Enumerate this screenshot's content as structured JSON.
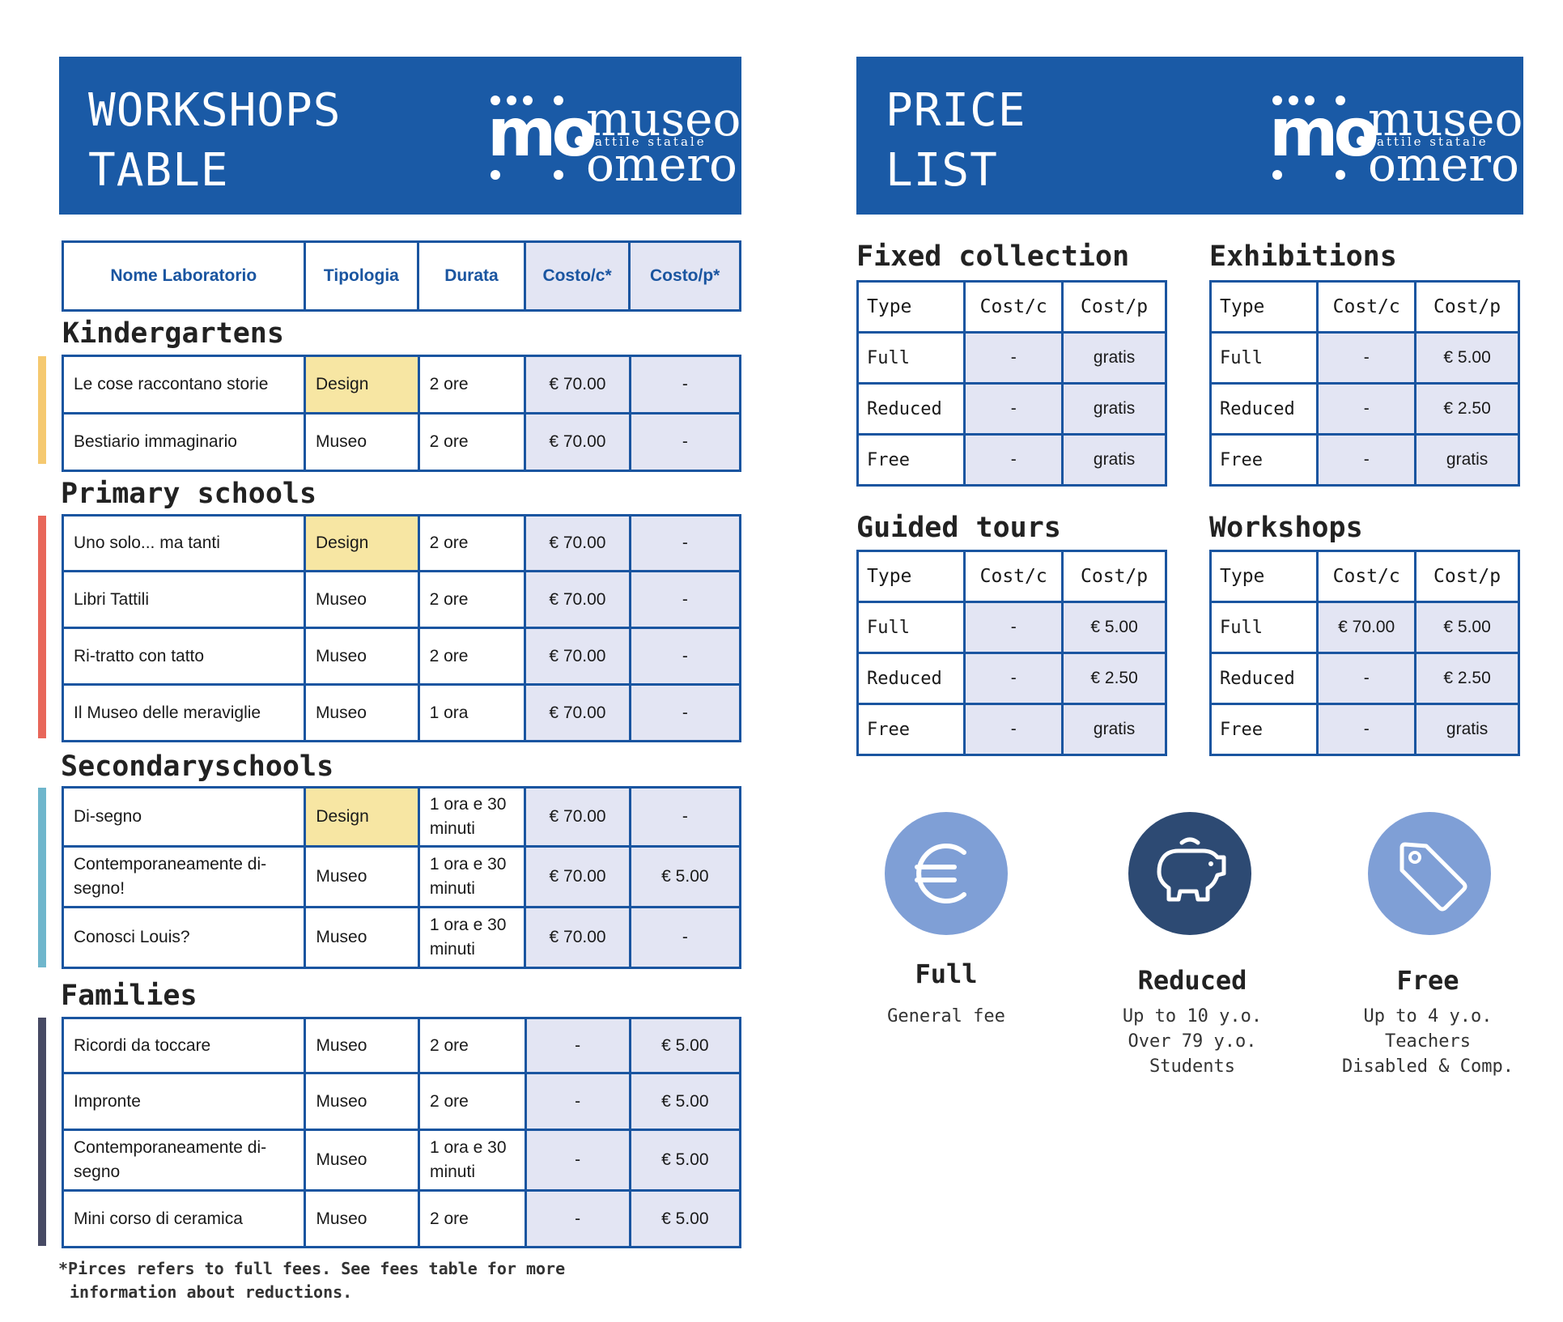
{
  "left_header": {
    "line1": "WORKSHOPS",
    "line2": "TABLE"
  },
  "right_header": {
    "line1": "PRICE",
    "line2": "LIST"
  },
  "logo": {
    "mark": "mo",
    "word1": "museo",
    "word2": "omero",
    "tagline": "tattile statale"
  },
  "workshops_table": {
    "headers": [
      "Nome Laboratorio",
      "Tipologia",
      "Durata",
      "Costo/c*",
      "Costo/p*"
    ],
    "sections": [
      {
        "title": "Kindergartens",
        "color": "#f5c970",
        "rows": [
          [
            "Le cose raccontano storie",
            "Design",
            "2 ore",
            "€ 70.00",
            "-"
          ],
          [
            "Bestiario immaginario",
            "Museo",
            "2 ore",
            "€ 70.00",
            "-"
          ]
        ]
      },
      {
        "title": "Primary schools",
        "color": "#e8675a",
        "rows": [
          [
            "Uno solo... ma tanti",
            "Design",
            "2 ore",
            "€ 70.00",
            "-"
          ],
          [
            "Libri Tattili",
            "Museo",
            "2 ore",
            "€ 70.00",
            "-"
          ],
          [
            "Ri-tratto con tatto",
            "Museo",
            "2 ore",
            "€ 70.00",
            "-"
          ],
          [
            "Il Museo delle meraviglie",
            "Museo",
            "1 ora",
            "€ 70.00",
            "-"
          ]
        ]
      },
      {
        "title": "Secondaryschools",
        "color": "#6fb6cc",
        "rows": [
          [
            "Di-segno",
            "Design",
            "1 ora e 30 minuti",
            "€ 70.00",
            "-"
          ],
          [
            "Contemporaneamente di-segno!",
            "Museo",
            "1 ora e 30 minuti",
            "€ 70.00",
            "€ 5.00"
          ],
          [
            "Conosci Louis?",
            "Museo",
            "1 ora e 30 minuti",
            "€ 70.00",
            "-"
          ]
        ]
      },
      {
        "title": "Families",
        "color": "#474a64",
        "rows": [
          [
            "Ricordi da toccare",
            "Museo",
            "2 ore",
            "-",
            "€ 5.00"
          ],
          [
            "Impronte",
            "Museo",
            "2 ore",
            "-",
            "€ 5.00"
          ],
          [
            "Contemporaneamente di-segno",
            "Museo",
            "1 ora e 30 minuti",
            "-",
            "€ 5.00"
          ],
          [
            "Mini corso di ceramica",
            "Museo",
            "2 ore",
            "-",
            "€ 5.00"
          ]
        ]
      }
    ]
  },
  "footnote": {
    "line1": "*Pirces refers to full fees. See fees table for more",
    "line2": "information about reductions."
  },
  "price_tables": [
    {
      "title": "Fixed collection",
      "headers": [
        "Type",
        "Cost/c",
        "Cost/p"
      ],
      "rows": [
        [
          "Full",
          "-",
          "gratis"
        ],
        [
          "Reduced",
          "-",
          "gratis"
        ],
        [
          "Free",
          "-",
          "gratis"
        ]
      ]
    },
    {
      "title": "Exhibitions",
      "headers": [
        "Type",
        "Cost/c",
        "Cost/p"
      ],
      "rows": [
        [
          "Full",
          "-",
          "€ 5.00"
        ],
        [
          "Reduced",
          "-",
          "€ 2.50"
        ],
        [
          "Free",
          "-",
          "gratis"
        ]
      ]
    },
    {
      "title": "Guided tours",
      "headers": [
        "Type",
        "Cost/c",
        "Cost/p"
      ],
      "rows": [
        [
          "Full",
          "-",
          "€ 5.00"
        ],
        [
          "Reduced",
          "-",
          "€ 2.50"
        ],
        [
          "Free",
          "-",
          "gratis"
        ]
      ]
    },
    {
      "title": "Workshops",
      "headers": [
        "Type",
        "Cost/c",
        "Cost/p"
      ],
      "rows": [
        [
          "Full",
          "€ 70.00",
          "€ 5.00"
        ],
        [
          "Reduced",
          "-",
          "€ 2.50"
        ],
        [
          "Free",
          "-",
          "gratis"
        ]
      ]
    }
  ],
  "fee_types": [
    {
      "icon": "euro-icon",
      "label": "Full",
      "lines": [
        "General fee"
      ],
      "color": "#7f9fd6"
    },
    {
      "icon": "piggy-bank-icon",
      "label": "Reduced",
      "lines": [
        "Up to 10 y.o.",
        "Over 79 y.o.",
        "Students"
      ],
      "color": "#2d4a73"
    },
    {
      "icon": "price-tag-icon",
      "label": "Free",
      "lines": [
        "Up to 4 y.o.",
        "Teachers",
        "Disabled & Comp."
      ],
      "color": "#7f9fd6"
    }
  ]
}
